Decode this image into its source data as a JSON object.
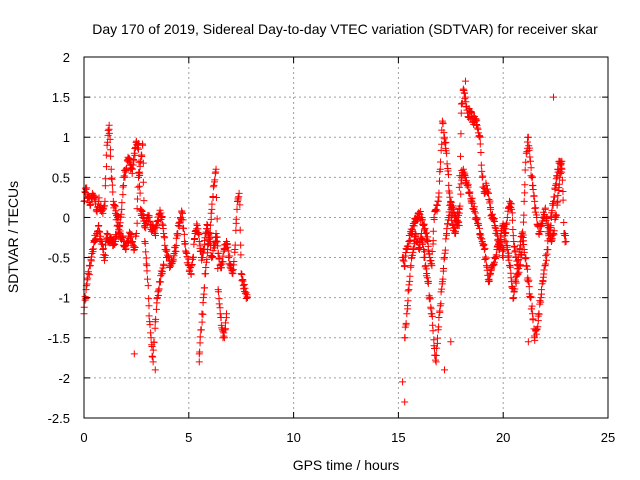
{
  "chart_data": {
    "type": "scatter",
    "title": "Day 170 of 2019, Sidereal Day-to-day VTEC variation (SDTVAR) for receiver skar",
    "xlabel": "GPS time / hours",
    "ylabel": "SDTVAR / TECUs",
    "xlim": [
      0,
      25
    ],
    "ylim": [
      -2.5,
      2
    ],
    "grid": true,
    "marker": "+",
    "marker_color": "#ff0000",
    "x_ticks": [
      0,
      5,
      10,
      15,
      20,
      25
    ],
    "x_tick_labels": [
      "0",
      "5",
      "10",
      "15",
      "20",
      "25"
    ],
    "y_ticks": [
      2,
      1.5,
      1,
      0.5,
      0,
      -0.5,
      -1,
      -1.5,
      -2,
      -2.5
    ],
    "y_tick_labels": [
      "2",
      "1.5",
      "1",
      "0.5",
      "0",
      "-0.5",
      "-1",
      "-1.5",
      "-2",
      "-2.5"
    ],
    "series": [
      {
        "name": "SDTVAR",
        "note": "dense '+' point cloud sampled from the figure (values in data units)",
        "segments": [
          {
            "x": [
              0.0,
              0.1,
              0.2,
              0.3,
              0.4,
              0.5,
              0.6,
              0.7,
              0.8,
              0.9,
              1.0,
              1.1,
              1.2,
              1.3,
              1.4,
              1.5,
              1.6,
              1.7,
              1.8,
              1.9,
              2.0,
              2.1,
              2.2,
              2.3,
              2.4,
              2.5,
              2.6,
              2.7,
              2.8,
              2.9,
              3.0,
              3.1,
              3.2,
              3.3,
              3.4,
              3.5,
              3.6,
              3.7,
              3.8,
              3.9,
              4.0,
              4.1,
              4.2,
              4.3,
              4.4,
              4.5,
              4.6,
              4.7,
              4.8,
              4.9,
              5.0,
              5.1,
              5.2,
              5.3,
              5.4,
              5.5,
              5.6,
              5.7,
              5.8,
              5.9,
              6.0,
              6.1,
              6.2,
              6.3,
              6.4,
              6.5,
              6.6,
              6.7,
              6.8,
              6.9,
              7.0,
              7.1,
              7.2,
              7.3,
              7.4,
              7.5,
              7.6,
              7.7,
              7.8
            ],
            "y": [
              0.2,
              0.35,
              0.25,
              0.15,
              0.3,
              0.25,
              0.1,
              0.2,
              0.15,
              0.05,
              0.2,
              0.9,
              1.15,
              0.6,
              0.2,
              0.05,
              0.0,
              -0.1,
              0.1,
              0.5,
              0.6,
              0.75,
              0.65,
              0.55,
              0.8,
              0.95,
              0.85,
              0.1,
              0.0,
              -0.1,
              -0.05,
              0.0,
              -0.15,
              -0.1,
              -0.2,
              -0.05,
              0.05,
              0.0,
              -0.2,
              -0.4,
              -0.5,
              -0.6,
              -0.55,
              -0.45,
              -0.35,
              -0.1,
              0.0,
              0.05,
              -0.3,
              -0.45,
              -0.6,
              -0.7,
              -0.5,
              -0.2,
              -0.1,
              -0.3,
              -0.5,
              -0.4,
              -0.2,
              -0.1,
              -0.3,
              -0.5,
              -0.35,
              -0.2,
              -0.45,
              -0.6,
              -0.55,
              -0.4,
              -0.3,
              -0.5,
              -0.6,
              -0.7,
              -0.4,
              0.1,
              0.3,
              -0.7,
              -0.85,
              -0.95,
              -1.0
            ]
          },
          {
            "x": [
              0.0,
              0.1,
              0.2,
              0.3,
              0.4,
              0.5,
              0.6,
              0.7,
              0.8,
              0.9,
              1.0,
              1.1,
              1.2,
              1.3,
              1.4,
              1.5,
              1.6,
              1.7,
              1.8,
              1.9,
              2.0,
              2.1,
              2.2,
              2.3,
              2.4,
              2.5,
              2.6,
              2.7,
              2.8,
              2.9,
              3.0,
              3.1,
              3.2,
              3.3,
              3.4,
              3.5,
              3.6,
              3.7,
              3.8
            ],
            "y": [
              -1.2,
              -0.9,
              -0.7,
              -0.6,
              -0.4,
              -0.3,
              -0.2,
              -0.1,
              -0.3,
              -0.4,
              -0.5,
              -0.2,
              -0.3,
              -0.25,
              -0.35,
              -0.3,
              -0.1,
              -0.2,
              -0.25,
              -0.3,
              -0.35,
              -0.3,
              -0.2,
              -0.3,
              -0.4,
              -0.2,
              0.5,
              0.7,
              0.9,
              -0.3,
              -0.6,
              -1.1,
              -1.5,
              -1.8,
              -1.3,
              -1.0,
              -0.8,
              -0.7,
              -0.6
            ]
          },
          {
            "x": [
              5.5,
              5.6,
              5.7,
              5.8,
              5.9,
              6.0,
              6.1,
              6.2,
              6.3,
              6.4,
              6.5,
              6.6,
              6.7,
              6.8
            ],
            "y": [
              -1.7,
              -1.4,
              -1.0,
              -0.7,
              -0.4,
              -0.2,
              0.1,
              0.4,
              0.6,
              -0.9,
              -1.2,
              -1.4,
              -1.5,
              -1.2
            ]
          },
          {
            "x": [
              15.2,
              15.3,
              15.4,
              15.5,
              15.6,
              15.7,
              15.8,
              15.9,
              16.0,
              16.1,
              16.2,
              16.3,
              16.4,
              16.5,
              16.6,
              16.7,
              16.8,
              16.9,
              17.0,
              17.1,
              17.2,
              17.3,
              17.4,
              17.5,
              17.6,
              17.7,
              17.8,
              17.9,
              18.0,
              18.1,
              18.2,
              18.3,
              18.4,
              18.5,
              18.6,
              18.7,
              18.8,
              18.9,
              19.0,
              19.1,
              19.2,
              19.3,
              19.4,
              19.5,
              19.6,
              19.7,
              19.8,
              19.9,
              20.0,
              20.1,
              20.2,
              20.3,
              20.4,
              20.5,
              20.6,
              20.7,
              20.8,
              20.9,
              21.0,
              21.1,
              21.2,
              21.3,
              21.4,
              21.5,
              21.6,
              21.7,
              21.8,
              21.9,
              22.0,
              22.1,
              22.2,
              22.3,
              22.4,
              22.5,
              22.6,
              22.7,
              22.8,
              22.9,
              23.0
            ],
            "y": [
              -0.5,
              -0.6,
              -0.4,
              -0.3,
              -0.2,
              -0.1,
              -0.05,
              0.0,
              0.05,
              0.0,
              -0.1,
              -0.2,
              -0.3,
              -0.5,
              -0.6,
              0.0,
              0.1,
              0.2,
              0.6,
              1.2,
              1.0,
              0.8,
              0.4,
              0.1,
              -0.1,
              -0.2,
              0.0,
              0.1,
              1.3,
              1.6,
              1.5,
              1.3,
              1.3,
              1.25,
              1.2,
              1.2,
              1.1,
              1.0,
              0.5,
              0.3,
              0.4,
              0.3,
              0.1,
              0.0,
              -0.1,
              -0.2,
              -0.4,
              -0.3,
              -0.5,
              -0.2,
              0.0,
              0.2,
              0.1,
              -0.3,
              -0.5,
              -0.7,
              -0.6,
              -0.4,
              0.2,
              0.8,
              1.0,
              0.7,
              0.4,
              0.2,
              0.0,
              -0.2,
              -0.1,
              0.0,
              0.1,
              -0.1,
              -0.2,
              -0.3,
              -0.2,
              0.0,
              0.2,
              0.5,
              0.7,
              -0.2,
              -0.3
            ]
          },
          {
            "x": [
              15.3,
              15.4,
              15.5,
              15.6,
              15.7,
              15.8,
              15.9,
              16.0,
              16.1,
              16.2,
              16.3,
              16.4,
              16.5,
              16.6,
              16.7,
              16.8,
              16.9,
              17.0,
              17.1,
              17.2,
              17.3,
              17.4,
              17.5,
              17.6,
              17.7,
              17.8,
              17.9,
              18.0,
              18.1,
              18.2,
              18.3,
              18.4,
              18.5,
              18.6,
              18.7,
              18.8,
              18.9,
              19.0,
              19.1,
              19.2,
              19.3,
              19.4,
              19.5,
              19.6,
              19.7,
              19.8,
              19.9,
              20.0,
              20.1,
              20.2,
              20.3,
              20.4,
              20.5,
              20.6,
              20.7,
              20.8,
              20.9,
              21.0,
              21.1,
              21.2,
              21.3,
              21.4,
              21.5,
              21.6,
              21.7,
              21.8,
              21.9,
              22.0,
              22.1,
              22.2,
              22.3,
              22.4,
              22.5,
              22.6,
              22.7,
              22.8
            ],
            "y": [
              -1.5,
              -1.2,
              -0.9,
              -0.6,
              -0.4,
              -0.2,
              -0.3,
              -0.4,
              -0.2,
              -0.4,
              -0.6,
              -0.8,
              -1.0,
              -1.2,
              -1.6,
              -1.8,
              -1.4,
              -1.1,
              -0.8,
              -0.5,
              -0.2,
              0.0,
              0.2,
              0.1,
              0.0,
              -0.1,
              -0.1,
              0.5,
              0.6,
              0.5,
              0.4,
              0.3,
              0.2,
              0.1,
              0.0,
              -0.1,
              -0.2,
              -0.3,
              -0.4,
              -0.6,
              -0.8,
              -0.7,
              -0.6,
              -0.5,
              -0.4,
              -0.3,
              -0.2,
              -0.1,
              -0.2,
              -0.4,
              -0.6,
              -0.8,
              -1.0,
              -0.8,
              -0.6,
              -0.4,
              -0.2,
              -0.4,
              -0.6,
              -0.8,
              -1.0,
              -1.2,
              -1.5,
              -1.4,
              -1.2,
              -1.0,
              -0.8,
              -0.6,
              -0.4,
              -0.2,
              0.0,
              0.2,
              0.4,
              0.6,
              0.7,
              0.6
            ]
          },
          {
            "x": [
              2.4,
              3.4,
              5.5,
              15.2,
              15.3,
              17.2,
              17.5,
              18.2,
              21.2,
              22.4
            ],
            "y": [
              -1.7,
              -1.9,
              -1.8,
              -2.05,
              -2.3,
              -1.9,
              -1.55,
              1.7,
              -1.55,
              1.5
            ]
          }
        ]
      }
    ]
  }
}
